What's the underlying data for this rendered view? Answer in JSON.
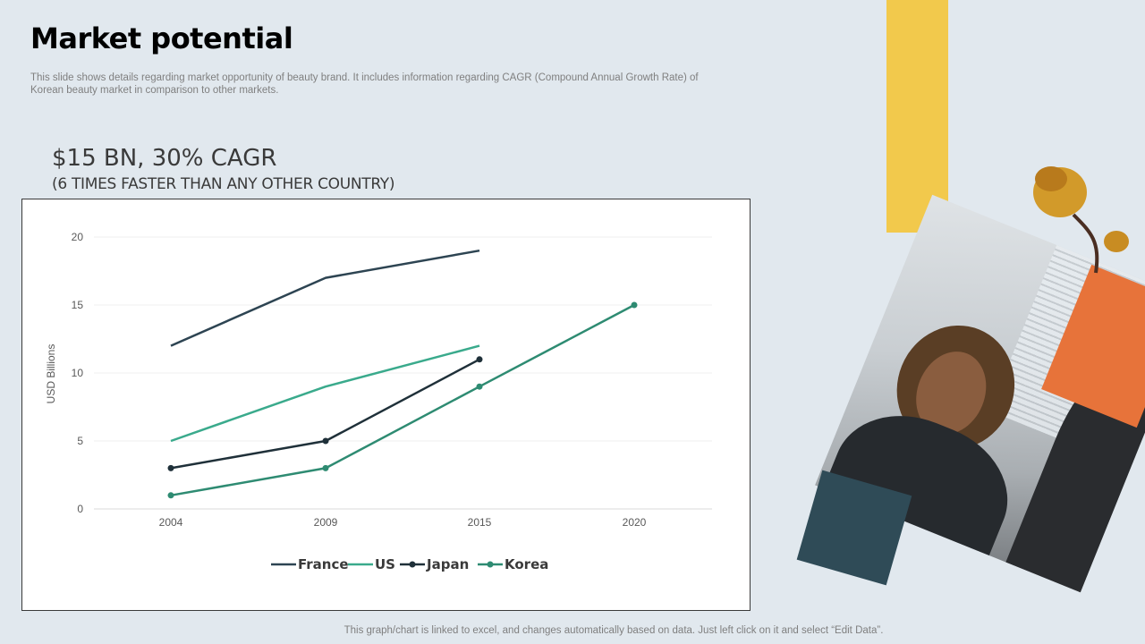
{
  "title": "Market potential",
  "subtitle": "This slide shows details regarding market opportunity of beauty brand. It includes information regarding CAGR (Compound Annual Growth Rate) of Korean beauty market in comparison to other markets.",
  "headline": "$15 BN, 30% CAGR",
  "subheadline": "(6 TIMES FASTER THAN ANY OTHER COUNTRY)",
  "footer_note": "This graph/chart is linked to excel,  and changes automatically based on data. Just left click on it and select “Edit Data”.",
  "colors": {
    "france": "#2d4452",
    "us": "#3aaa8c",
    "japan": "#1f3039",
    "korea": "#2e8b72",
    "accent_yellow": "#f2c94c",
    "accent_orange": "#e7733a"
  },
  "chart_data": {
    "type": "line",
    "title": "",
    "xlabel": "",
    "ylabel": "USD Billions",
    "categories": [
      "2004",
      "2009",
      "2015",
      "2020"
    ],
    "ylim": [
      0,
      20
    ],
    "yticks": [
      0,
      5,
      10,
      15,
      20
    ],
    "grid": true,
    "legend_position": "bottom",
    "series": [
      {
        "name": "France",
        "values": [
          12,
          17,
          19,
          null
        ],
        "color": "#2d4452",
        "markers": false
      },
      {
        "name": "US",
        "values": [
          5,
          9,
          12,
          null
        ],
        "color": "#3aaa8c",
        "markers": false
      },
      {
        "name": "Japan",
        "values": [
          3,
          5,
          11,
          null
        ],
        "color": "#1f3039",
        "markers": true
      },
      {
        "name": "Korea",
        "values": [
          1,
          3,
          9,
          15
        ],
        "color": "#2e8b72",
        "markers": true
      }
    ]
  }
}
